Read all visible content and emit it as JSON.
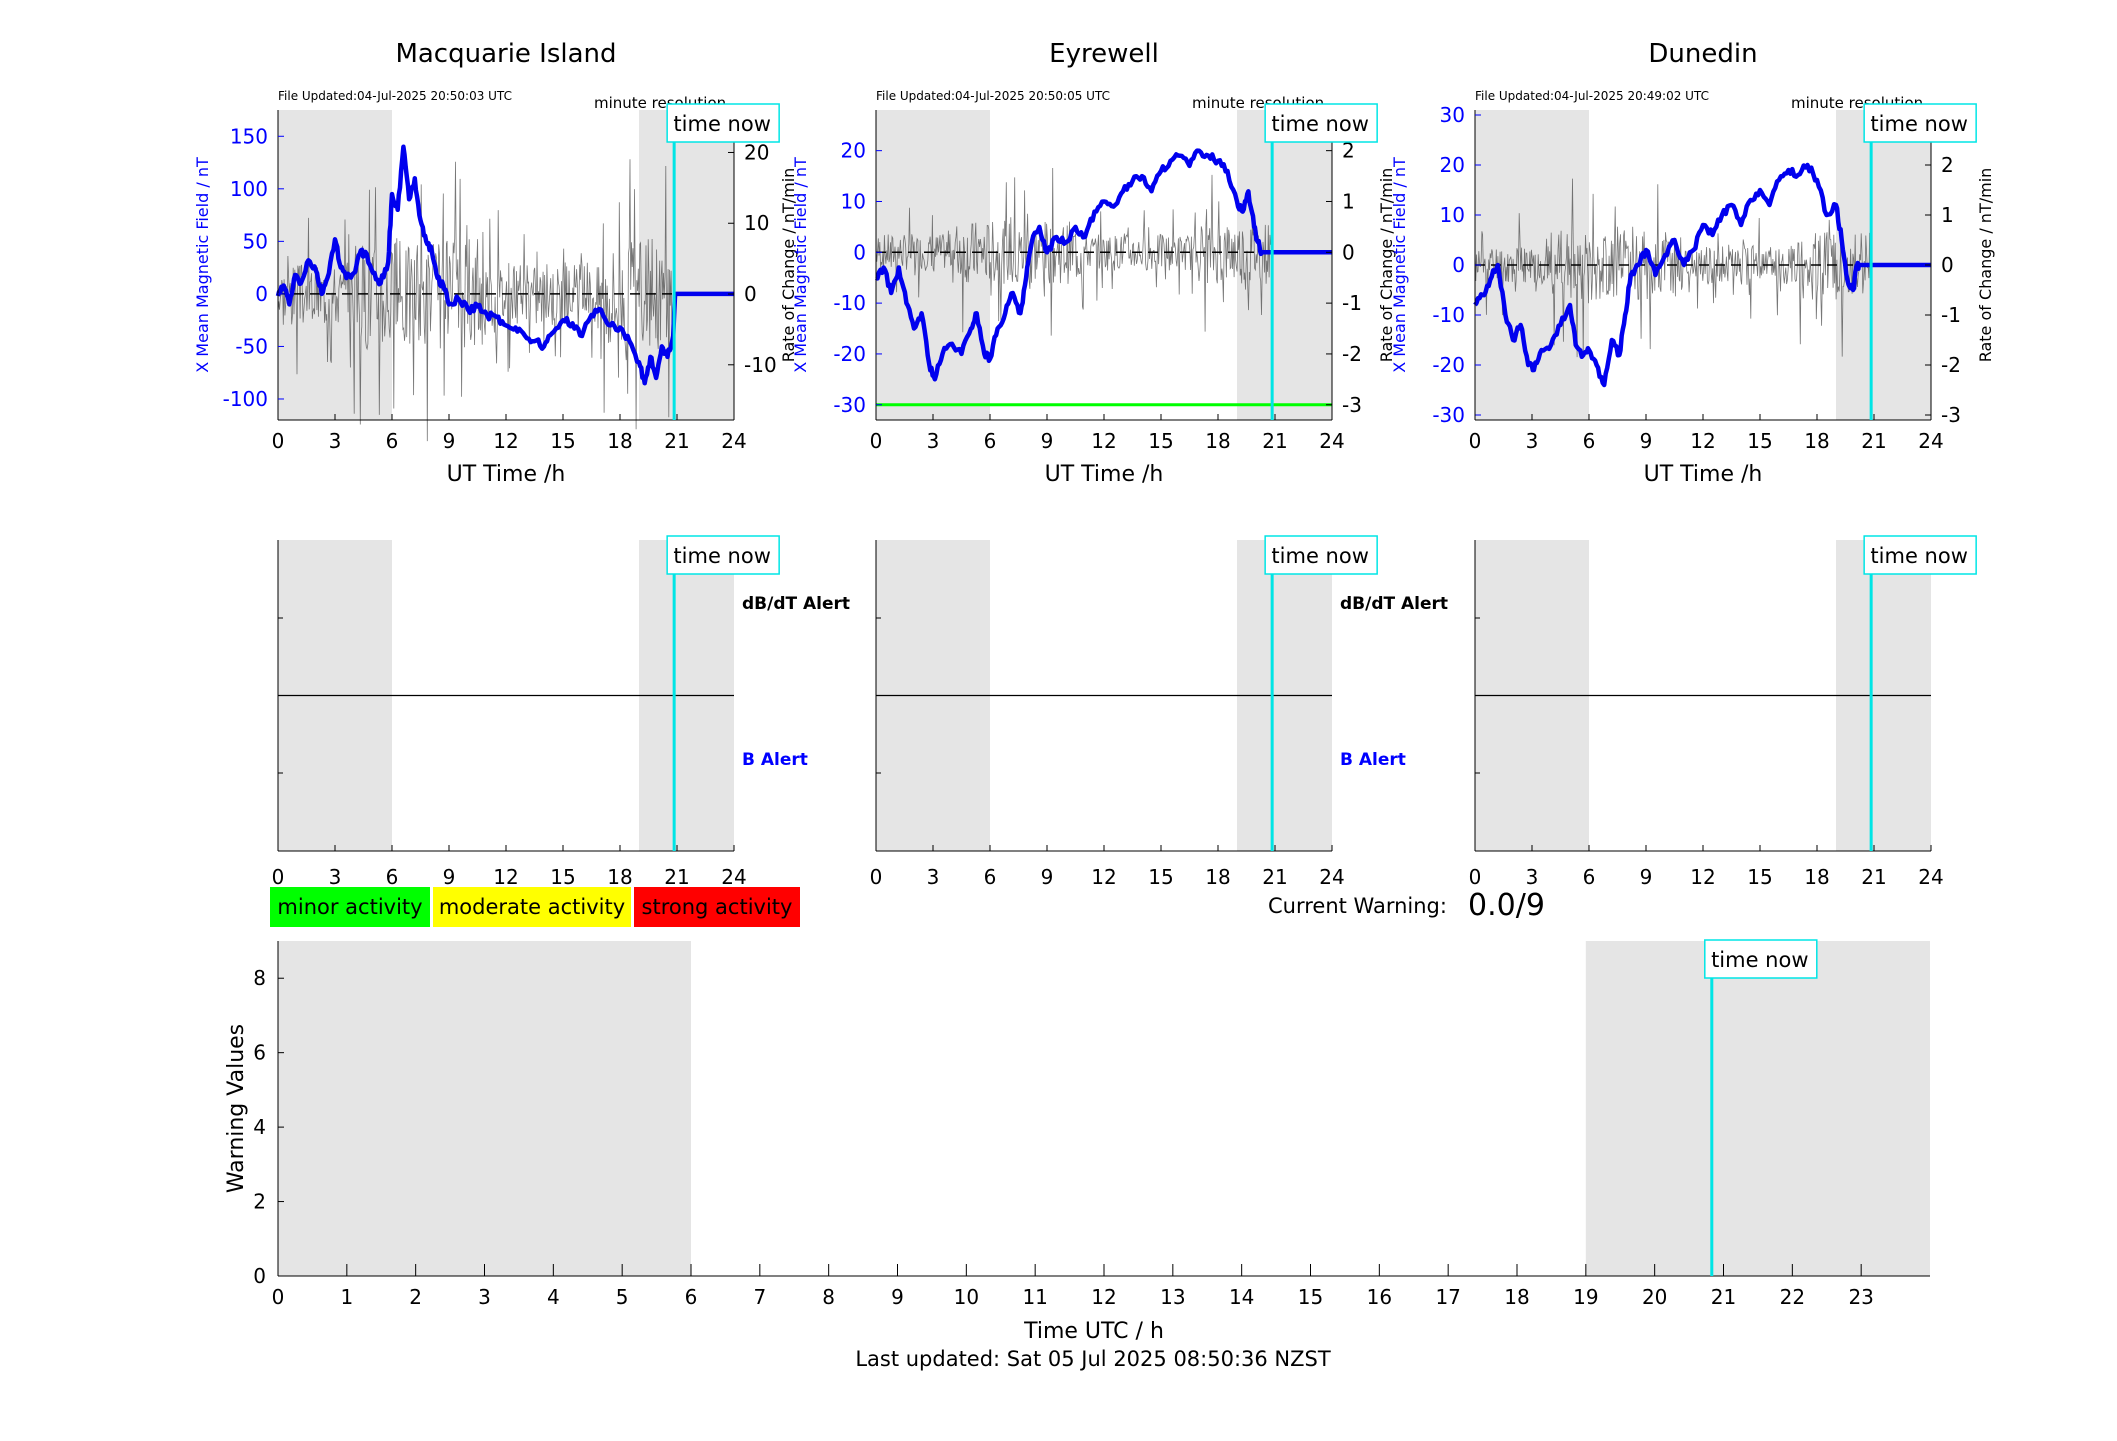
{
  "stations": [
    {
      "id": "mqi",
      "title": "Macquarie Island",
      "file_updated": "File Updated:04-Jul-2025 20:50:03 UTC",
      "resolution": "minute resolution",
      "ylabel_left": "X Mean Magnetic Field / nT",
      "ylabel_right": "Rate of Change / nT/min",
      "ylim_left": [
        -120,
        175
      ],
      "yticks_left": [
        "-100",
        "-50",
        "0",
        "50",
        "100",
        "150"
      ],
      "yticks_left_values": [
        -100,
        -50,
        0,
        50,
        100,
        150
      ],
      "ylim_right": [
        -17.8,
        26
      ],
      "yticks_right": [
        "-10",
        "0",
        "10",
        "20"
      ],
      "yticks_right_values": [
        -10,
        0,
        10,
        20
      ],
      "green_line": null,
      "x_mag": [
        [
          0,
          -2
        ],
        [
          0.3,
          8
        ],
        [
          0.6,
          -10
        ],
        [
          0.9,
          18
        ],
        [
          1.2,
          10
        ],
        [
          1.6,
          32
        ],
        [
          2,
          22
        ],
        [
          2.3,
          0
        ],
        [
          2.6,
          15
        ],
        [
          3,
          52
        ],
        [
          3.3,
          25
        ],
        [
          3.6,
          15
        ],
        [
          4,
          20
        ],
        [
          4.3,
          38
        ],
        [
          4.6,
          40
        ],
        [
          5,
          20
        ],
        [
          5.4,
          10
        ],
        [
          5.8,
          30
        ],
        [
          6,
          95
        ],
        [
          6.3,
          80
        ],
        [
          6.6,
          140
        ],
        [
          6.9,
          90
        ],
        [
          7.2,
          110
        ],
        [
          7.5,
          70
        ],
        [
          7.8,
          50
        ],
        [
          8.1,
          40
        ],
        [
          8.4,
          15
        ],
        [
          8.7,
          8
        ],
        [
          9,
          -10
        ],
        [
          9.5,
          -5
        ],
        [
          10,
          -15
        ],
        [
          10.5,
          -12
        ],
        [
          11,
          -20
        ],
        [
          11.5,
          -22
        ],
        [
          12,
          -30
        ],
        [
          12.5,
          -32
        ],
        [
          13,
          -40
        ],
        [
          13.5,
          -45
        ],
        [
          14,
          -50
        ],
        [
          14.4,
          -38
        ],
        [
          15,
          -25
        ],
        [
          15.5,
          -28
        ],
        [
          16,
          -40
        ],
        [
          16.5,
          -20
        ],
        [
          17,
          -15
        ],
        [
          17.5,
          -30
        ],
        [
          18,
          -32
        ],
        [
          18.5,
          -45
        ],
        [
          19,
          -65
        ],
        [
          19.3,
          -85
        ],
        [
          19.6,
          -60
        ],
        [
          19.9,
          -80
        ],
        [
          20.2,
          -50
        ],
        [
          20.5,
          -60
        ],
        [
          20.8,
          -40
        ],
        [
          20.9,
          0
        ],
        [
          24,
          0
        ]
      ],
      "rate_noise_amp": 10,
      "rate_seed": 3,
      "shade": [
        [
          0,
          6
        ],
        [
          19,
          24
        ]
      ],
      "time_now": 20.85,
      "alert_labels": [
        "dB/dT Alert",
        "B Alert"
      ]
    },
    {
      "id": "eyr",
      "title": "Eyrewell",
      "file_updated": "File Updated:04-Jul-2025 20:50:05 UTC",
      "resolution": "minute resolution",
      "ylabel_left": "X Mean Magnetic Field / nT",
      "ylabel_right": "Rate of Change / nT/min",
      "ylim_left": [
        -33,
        28
      ],
      "yticks_left": [
        "-30",
        "-20",
        "-10",
        "0",
        "10",
        "20"
      ],
      "yticks_left_values": [
        -30,
        -20,
        -10,
        0,
        10,
        20
      ],
      "ylim_right": [
        -3.3,
        2.8
      ],
      "yticks_right": [
        "-3",
        "-2",
        "-1",
        "0",
        "1",
        "2"
      ],
      "yticks_right_values": [
        -3,
        -2,
        -1,
        0,
        1,
        2
      ],
      "green_line": -30,
      "x_mag": [
        [
          0,
          -5
        ],
        [
          0.4,
          -3
        ],
        [
          0.8,
          -8
        ],
        [
          1.2,
          -3
        ],
        [
          1.6,
          -10
        ],
        [
          2,
          -15
        ],
        [
          2.4,
          -12
        ],
        [
          2.8,
          -22
        ],
        [
          3.1,
          -25
        ],
        [
          3.5,
          -20
        ],
        [
          4,
          -18
        ],
        [
          4.5,
          -20
        ],
        [
          5,
          -15
        ],
        [
          5.3,
          -12
        ],
        [
          5.7,
          -20
        ],
        [
          6,
          -21
        ],
        [
          6.4,
          -15
        ],
        [
          6.8,
          -12
        ],
        [
          7.2,
          -8
        ],
        [
          7.6,
          -12
        ],
        [
          7.9,
          -5
        ],
        [
          8.2,
          2
        ],
        [
          8.6,
          5
        ],
        [
          9,
          0
        ],
        [
          9.5,
          3
        ],
        [
          10,
          2
        ],
        [
          10.5,
          5
        ],
        [
          11,
          3
        ],
        [
          11.5,
          8
        ],
        [
          12,
          10
        ],
        [
          12.5,
          9
        ],
        [
          13,
          12
        ],
        [
          13.5,
          14
        ],
        [
          14,
          15
        ],
        [
          14.5,
          12
        ],
        [
          15,
          16
        ],
        [
          15.5,
          18
        ],
        [
          16,
          19
        ],
        [
          16.5,
          17
        ],
        [
          17,
          20
        ],
        [
          17.5,
          19
        ],
        [
          18,
          18
        ],
        [
          18.5,
          16
        ],
        [
          19,
          10
        ],
        [
          19.3,
          8
        ],
        [
          19.6,
          12
        ],
        [
          19.9,
          5
        ],
        [
          20.1,
          2
        ],
        [
          20.3,
          0
        ],
        [
          24,
          0
        ]
      ],
      "rate_noise_amp": 0.8,
      "rate_seed": 7,
      "shade": [
        [
          0,
          6
        ],
        [
          19,
          24
        ]
      ],
      "time_now": 20.85,
      "alert_labels": [
        "dB/dT Alert",
        "B Alert"
      ]
    },
    {
      "id": "dun",
      "title": "Dunedin",
      "file_updated": "File Updated:04-Jul-2025 20:49:02 UTC",
      "resolution": "minute resolution",
      "ylabel_left": "X Mean Magnetic Field / nT",
      "ylabel_right": "Rate of Change / nT/min",
      "ylim_left": [
        -31,
        31
      ],
      "yticks_left": [
        "-30",
        "-20",
        "-10",
        "0",
        "10",
        "20",
        "30"
      ],
      "yticks_left_values": [
        -30,
        -20,
        -10,
        0,
        10,
        20,
        30
      ],
      "ylim_right": [
        -3.1,
        3.1
      ],
      "yticks_right": [
        "-3",
        "-2",
        "-1",
        "0",
        "1",
        "2",
        "3"
      ],
      "yticks_right_values": [
        -3,
        -2,
        -1,
        0,
        1,
        2,
        3
      ],
      "green_line": null,
      "x_mag": [
        [
          0,
          -8
        ],
        [
          0.4,
          -6
        ],
        [
          0.8,
          -3
        ],
        [
          1.2,
          0
        ],
        [
          1.6,
          -10
        ],
        [
          2,
          -15
        ],
        [
          2.4,
          -12
        ],
        [
          2.8,
          -20
        ],
        [
          3.1,
          -21
        ],
        [
          3.5,
          -17
        ],
        [
          4,
          -16
        ],
        [
          4.5,
          -12
        ],
        [
          5,
          -8
        ],
        [
          5.3,
          -16
        ],
        [
          5.7,
          -18
        ],
        [
          6,
          -17
        ],
        [
          6.4,
          -20
        ],
        [
          6.8,
          -24
        ],
        [
          7.2,
          -15
        ],
        [
          7.6,
          -18
        ],
        [
          7.9,
          -10
        ],
        [
          8.2,
          -2
        ],
        [
          8.6,
          0
        ],
        [
          9,
          3
        ],
        [
          9.5,
          -2
        ],
        [
          10,
          2
        ],
        [
          10.5,
          5
        ],
        [
          11,
          0
        ],
        [
          11.5,
          3
        ],
        [
          12,
          8
        ],
        [
          12.5,
          6
        ],
        [
          13,
          10
        ],
        [
          13.5,
          12
        ],
        [
          14,
          8
        ],
        [
          14.5,
          13
        ],
        [
          15,
          15
        ],
        [
          15.5,
          12
        ],
        [
          16,
          17
        ],
        [
          16.5,
          19
        ],
        [
          17,
          18
        ],
        [
          17.5,
          20
        ],
        [
          18,
          17
        ],
        [
          18.5,
          10
        ],
        [
          19,
          12
        ],
        [
          19.3,
          5
        ],
        [
          19.6,
          -3
        ],
        [
          19.9,
          -5
        ],
        [
          20.1,
          0
        ],
        [
          20.2,
          0
        ],
        [
          24,
          0
        ]
      ],
      "rate_noise_amp": 0.9,
      "rate_seed": 11,
      "shade": [
        [
          0,
          6
        ],
        [
          19,
          24
        ]
      ],
      "time_now": 20.85,
      "alert_labels": []
    }
  ],
  "xticks": [
    "0",
    "3",
    "6",
    "9",
    "12",
    "15",
    "18",
    "21",
    "24"
  ],
  "xlabel": "UT Time /h",
  "time_now_label": "time now",
  "legend": [
    {
      "label": "minor activity",
      "color": "#00ff00"
    },
    {
      "label": "moderate activity",
      "color": "#ffff00"
    },
    {
      "label": "strong activity",
      "color": "#ff0000"
    }
  ],
  "current_warning_label": "Current Warning:",
  "current_warning_value": "0.0/9",
  "chart_data": {
    "type": "line",
    "title": "",
    "xlabel": "Time UTC / h",
    "ylabel": "Warning Values",
    "x": [],
    "values": [],
    "xlim": [
      0,
      24
    ],
    "ylim": [
      0,
      9
    ],
    "xticks": [
      "0",
      "1",
      "2",
      "3",
      "4",
      "5",
      "6",
      "7",
      "8",
      "9",
      "10",
      "11",
      "12",
      "13",
      "14",
      "15",
      "16",
      "17",
      "18",
      "19",
      "20",
      "21",
      "22",
      "23"
    ],
    "yticks": [
      "0",
      "2",
      "4",
      "6",
      "8"
    ],
    "shade": [
      [
        0,
        6
      ],
      [
        19,
        24
      ]
    ],
    "time_now": 20.83
  },
  "last_updated": "Last updated: Sat 05 Jul 2025 08:50:36 NZST",
  "colors": {
    "field": "#0000ee",
    "rate": "#555555",
    "shade": "#e5e5e5",
    "time_now": "#00e5e5",
    "axis_blue": "#0000ff",
    "green_line": "#00ff00"
  }
}
